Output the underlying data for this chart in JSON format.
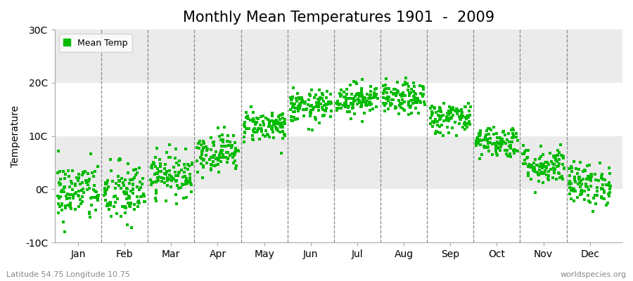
{
  "title": "Monthly Mean Temperatures 1901  -  2009",
  "ylabel": "Temperature",
  "xlabel_bottom_left": "Latitude 54.75 Longitude 10.75",
  "xlabel_bottom_right": "worldspecies.org",
  "legend_label": "Mean Temp",
  "ylim": [
    -10,
    30
  ],
  "yticks": [
    -10,
    0,
    10,
    20,
    30
  ],
  "ytick_labels": [
    "-10C",
    "0C",
    "10C",
    "20C",
    "30C"
  ],
  "months": [
    "Jan",
    "Feb",
    "Mar",
    "Apr",
    "May",
    "Jun",
    "Jul",
    "Aug",
    "Sep",
    "Oct",
    "Nov",
    "Dec"
  ],
  "month_centers": [
    1,
    2,
    3,
    4,
    5,
    6,
    7,
    8,
    9,
    10,
    11,
    12
  ],
  "dot_color": "#00bb00",
  "figure_bg_color": "#ffffff",
  "plot_bg_color": "#ffffff",
  "band_color_light": "#f0f0f0",
  "title_fontsize": 15,
  "axis_label_fontsize": 10,
  "tick_label_fontsize": 10,
  "monthly_mean": [
    -0.5,
    -0.8,
    2.8,
    7.0,
    12.0,
    15.5,
    17.0,
    17.0,
    13.5,
    9.0,
    4.5,
    1.0
  ],
  "monthly_std": [
    2.8,
    3.0,
    2.0,
    1.8,
    1.5,
    1.5,
    1.5,
    1.5,
    1.5,
    1.5,
    1.8,
    2.0
  ],
  "n_years": 109,
  "seed": 42
}
